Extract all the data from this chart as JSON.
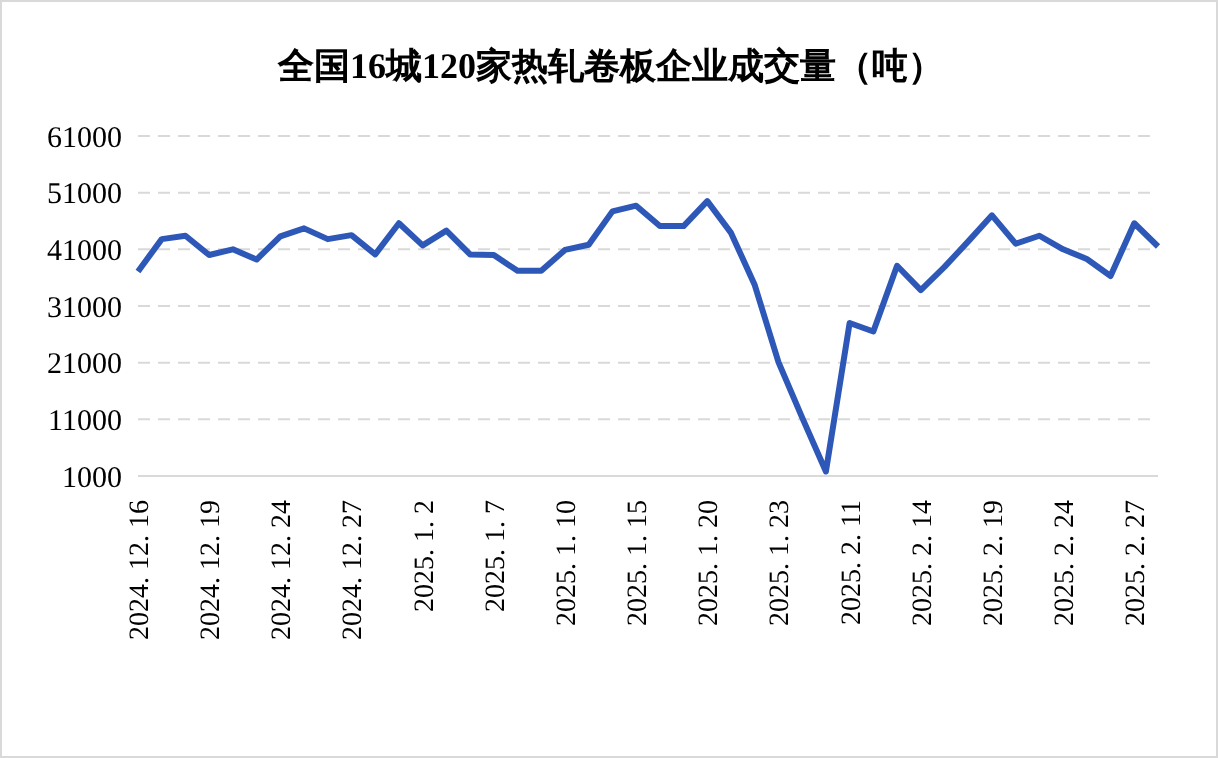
{
  "chart_data": {
    "type": "line",
    "title": "全国16城120家热轧卷板企业成交量（吨）",
    "categories": [
      "2024. 12. 16",
      null,
      null,
      "2024. 12. 19",
      null,
      null,
      "2024. 12. 24",
      null,
      null,
      "2024. 12. 27",
      null,
      null,
      "2025. 1. 2",
      null,
      null,
      "2025. 1. 7",
      null,
      null,
      "2025. 1. 10",
      null,
      null,
      "2025. 1. 15",
      null,
      null,
      "2025. 1. 20",
      null,
      null,
      "2025. 1. 23",
      null,
      null,
      "2025. 2. 11",
      null,
      null,
      "2025. 2. 14",
      null,
      null,
      "2025. 2. 19",
      null,
      null,
      "2025. 2. 24",
      null,
      null,
      "2025. 2. 27",
      null
    ],
    "series": [
      {
        "color": "#2e58b8",
        "values": [
          37100,
          42800,
          43400,
          40000,
          41000,
          39200,
          43300,
          44700,
          42800,
          43500,
          40100,
          45600,
          41700,
          44300,
          40100,
          40000,
          37200,
          37200,
          40900,
          41800,
          47700,
          48700,
          45100,
          45100,
          49500,
          43900,
          34700,
          21100,
          11300,
          1800,
          28000,
          26500,
          38100,
          33800,
          37900,
          42400,
          47000,
          42000,
          43400,
          41000,
          39300,
          36300,
          45600,
          41500
        ]
      }
    ],
    "ylim": [
      1000,
      61000
    ],
    "yticks": [
      1000,
      11000,
      21000,
      31000,
      41000,
      51000,
      61000
    ],
    "grid": "y",
    "legend": false,
    "marker": "none",
    "line_style": "solid"
  }
}
